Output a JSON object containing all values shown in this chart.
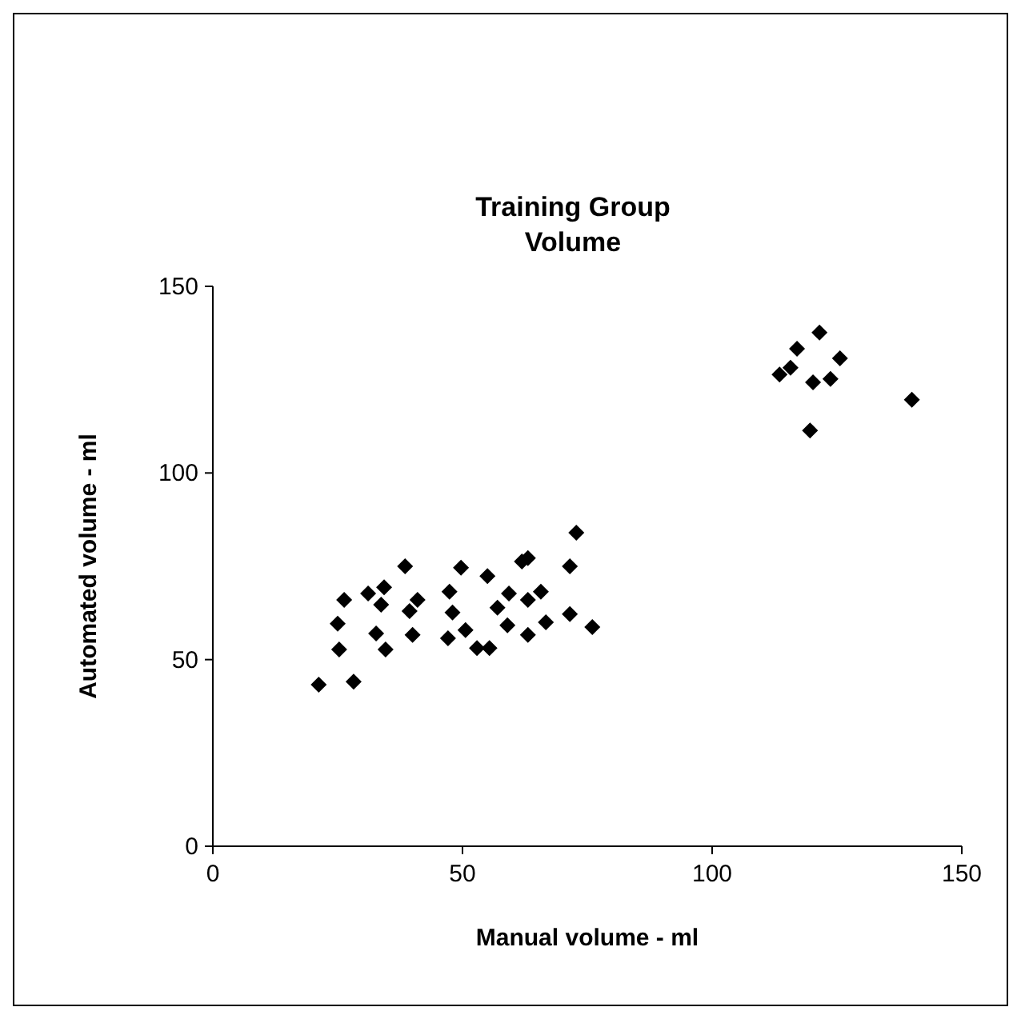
{
  "chart_data": {
    "type": "scatter",
    "title": "Training Group\nVolume",
    "xlabel": "Manual volume - ml",
    "ylabel": "Automated volume - ml",
    "x": [
      21.2,
      28.2,
      25,
      25.3,
      26.3,
      31.1,
      33.7,
      34.3,
      32.7,
      34.6,
      38.5,
      39.4,
      40,
      41,
      47.4,
      49.7,
      48,
      50.6,
      47.1,
      52.9,
      55,
      55.4,
      57,
      59,
      59.3,
      61.9,
      63.1,
      63.1,
      63.1,
      65.7,
      66.7,
      71.5,
      71.5,
      72.8,
      76,
      113.5,
      115.7,
      117,
      121.5,
      125.6,
      120.2,
      123.7,
      119.6,
      140
    ],
    "values": [
      43.3,
      44.1,
      59.6,
      52.7,
      66,
      67.7,
      64.7,
      69.4,
      57,
      52.7,
      75,
      63,
      56.6,
      66,
      68.2,
      74.6,
      62.6,
      57.9,
      55.7,
      53.1,
      72.4,
      53.1,
      63.9,
      59.2,
      67.7,
      76.3,
      77.2,
      66,
      56.6,
      68.2,
      60,
      75,
      62.2,
      84,
      58.7,
      126.4,
      128.2,
      133.3,
      137.6,
      130.7,
      124.3,
      125.2,
      111.4,
      119.6
    ],
    "color": "#000000",
    "marker": "diamond",
    "xlim": [
      0,
      150
    ],
    "ylim": [
      0,
      150
    ],
    "xticks": [
      0,
      50,
      100,
      150
    ],
    "yticks": [
      0,
      50,
      100,
      150
    ],
    "grid": false
  }
}
